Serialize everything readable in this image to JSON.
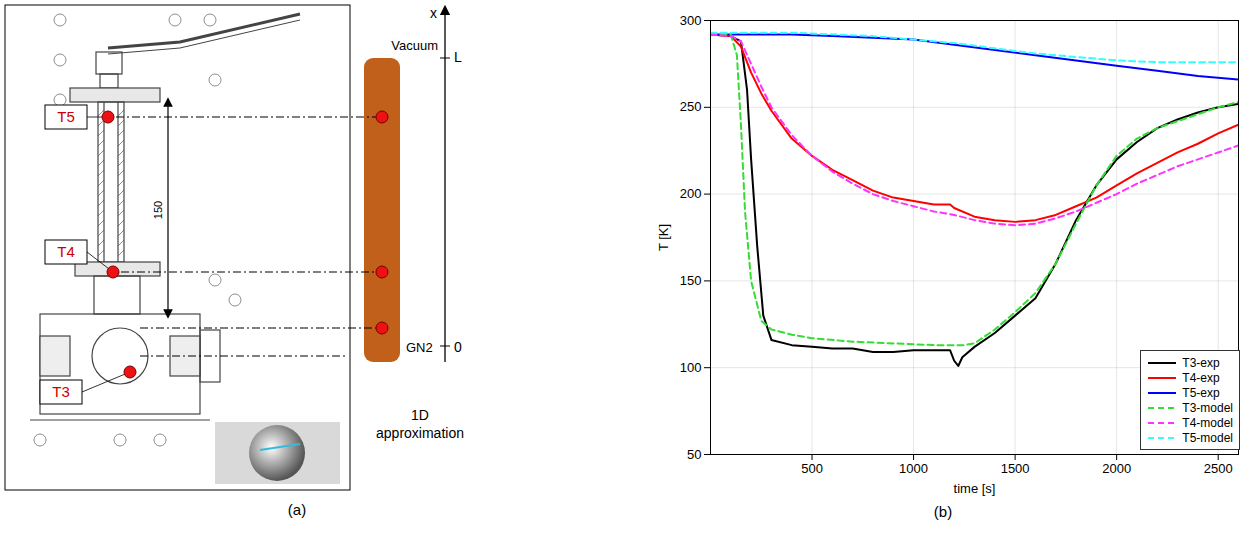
{
  "diagram": {
    "panel_label": "(a)",
    "sensors": [
      "T5",
      "T4",
      "T3"
    ],
    "dimension": "150",
    "bar": {
      "top_label": "Vacuum",
      "bottom_label": "GN2",
      "caption": "1D approximation",
      "color": "#c0601a"
    },
    "axis": {
      "label": "x",
      "top": "L",
      "bottom": "0"
    }
  },
  "chart_data": {
    "type": "line",
    "panel_label": "(b)",
    "x_label": "time [s]",
    "y_label": "T [K]",
    "xlim": [
      0,
      2600
    ],
    "xticks": [
      500,
      1000,
      1500,
      2000,
      2500
    ],
    "ylim": [
      50,
      300
    ],
    "yticks": [
      50,
      100,
      150,
      200,
      250,
      300
    ],
    "grid": true,
    "legend": "lower right",
    "series": [
      {
        "name": "T3-exp",
        "color": "#000000",
        "line_style": "solid",
        "x": [
          0,
          100,
          150,
          180,
          200,
          230,
          260,
          300,
          400,
          500,
          600,
          700,
          800,
          900,
          1000,
          1100,
          1180,
          1200,
          1220,
          1240,
          1300,
          1400,
          1500,
          1600,
          1700,
          1800,
          1900,
          2000,
          2100,
          2200,
          2300,
          2400,
          2500,
          2600
        ],
        "values": [
          292,
          291,
          288,
          260,
          220,
          170,
          130,
          116,
          113,
          112,
          111,
          111,
          109,
          109,
          110,
          110,
          110,
          104,
          101,
          106,
          112,
          120,
          130,
          140,
          160,
          185,
          205,
          220,
          230,
          238,
          243,
          247,
          250,
          252
        ]
      },
      {
        "name": "T4-exp",
        "color": "#ff0000",
        "line_style": "solid",
        "x": [
          0,
          100,
          150,
          200,
          250,
          300,
          400,
          500,
          600,
          700,
          800,
          900,
          1000,
          1100,
          1180,
          1200,
          1300,
          1400,
          1500,
          1600,
          1700,
          1800,
          1900,
          2000,
          2100,
          2200,
          2300,
          2400,
          2500,
          2600
        ],
        "values": [
          292,
          291,
          285,
          270,
          258,
          248,
          232,
          222,
          214,
          208,
          202,
          198,
          196,
          194,
          194,
          192,
          187,
          185,
          184,
          185,
          188,
          193,
          198,
          205,
          212,
          218,
          224,
          229,
          235,
          240
        ]
      },
      {
        "name": "T5-exp",
        "color": "#0000ff",
        "line_style": "solid",
        "x": [
          0,
          200,
          400,
          600,
          800,
          1000,
          1200,
          1400,
          1600,
          1800,
          2000,
          2200,
          2400,
          2600
        ],
        "values": [
          292,
          292,
          292,
          291,
          290,
          289,
          286,
          283,
          280,
          277,
          274,
          271,
          268,
          266
        ]
      },
      {
        "name": "T3-model",
        "color": "#33dd33",
        "line_style": "dashed",
        "x": [
          0,
          100,
          130,
          150,
          170,
          200,
          250,
          300,
          400,
          500,
          700,
          900,
          1100,
          1200,
          1250,
          1300,
          1400,
          1500,
          1600,
          1700,
          1800,
          1900,
          2000,
          2100,
          2200,
          2300,
          2400,
          2500,
          2600
        ],
        "values": [
          292,
          292,
          280,
          240,
          190,
          150,
          127,
          122,
          119,
          117,
          115,
          114,
          113,
          113,
          113,
          114,
          122,
          132,
          143,
          160,
          183,
          205,
          222,
          232,
          238,
          242,
          246,
          250,
          253
        ]
      },
      {
        "name": "T4-model",
        "color": "#ff33ff",
        "line_style": "dashed",
        "x": [
          0,
          100,
          150,
          200,
          250,
          300,
          400,
          500,
          600,
          700,
          800,
          900,
          1000,
          1100,
          1200,
          1300,
          1400,
          1500,
          1600,
          1700,
          1800,
          1900,
          2000,
          2100,
          2200,
          2300,
          2400,
          2500,
          2600
        ],
        "values": [
          292,
          291,
          288,
          275,
          262,
          250,
          234,
          222,
          213,
          206,
          200,
          196,
          193,
          190,
          188,
          185,
          183,
          182,
          183,
          186,
          190,
          195,
          200,
          206,
          211,
          216,
          220,
          224,
          228
        ]
      },
      {
        "name": "T5-model",
        "color": "#33ffff",
        "line_style": "dashed",
        "x": [
          0,
          400,
          800,
          1000,
          1200,
          1400,
          1600,
          1800,
          2000,
          2200,
          2400,
          2600
        ],
        "values": [
          293,
          293,
          291,
          289,
          287,
          284,
          281,
          279,
          277,
          276,
          276,
          276
        ]
      }
    ]
  }
}
